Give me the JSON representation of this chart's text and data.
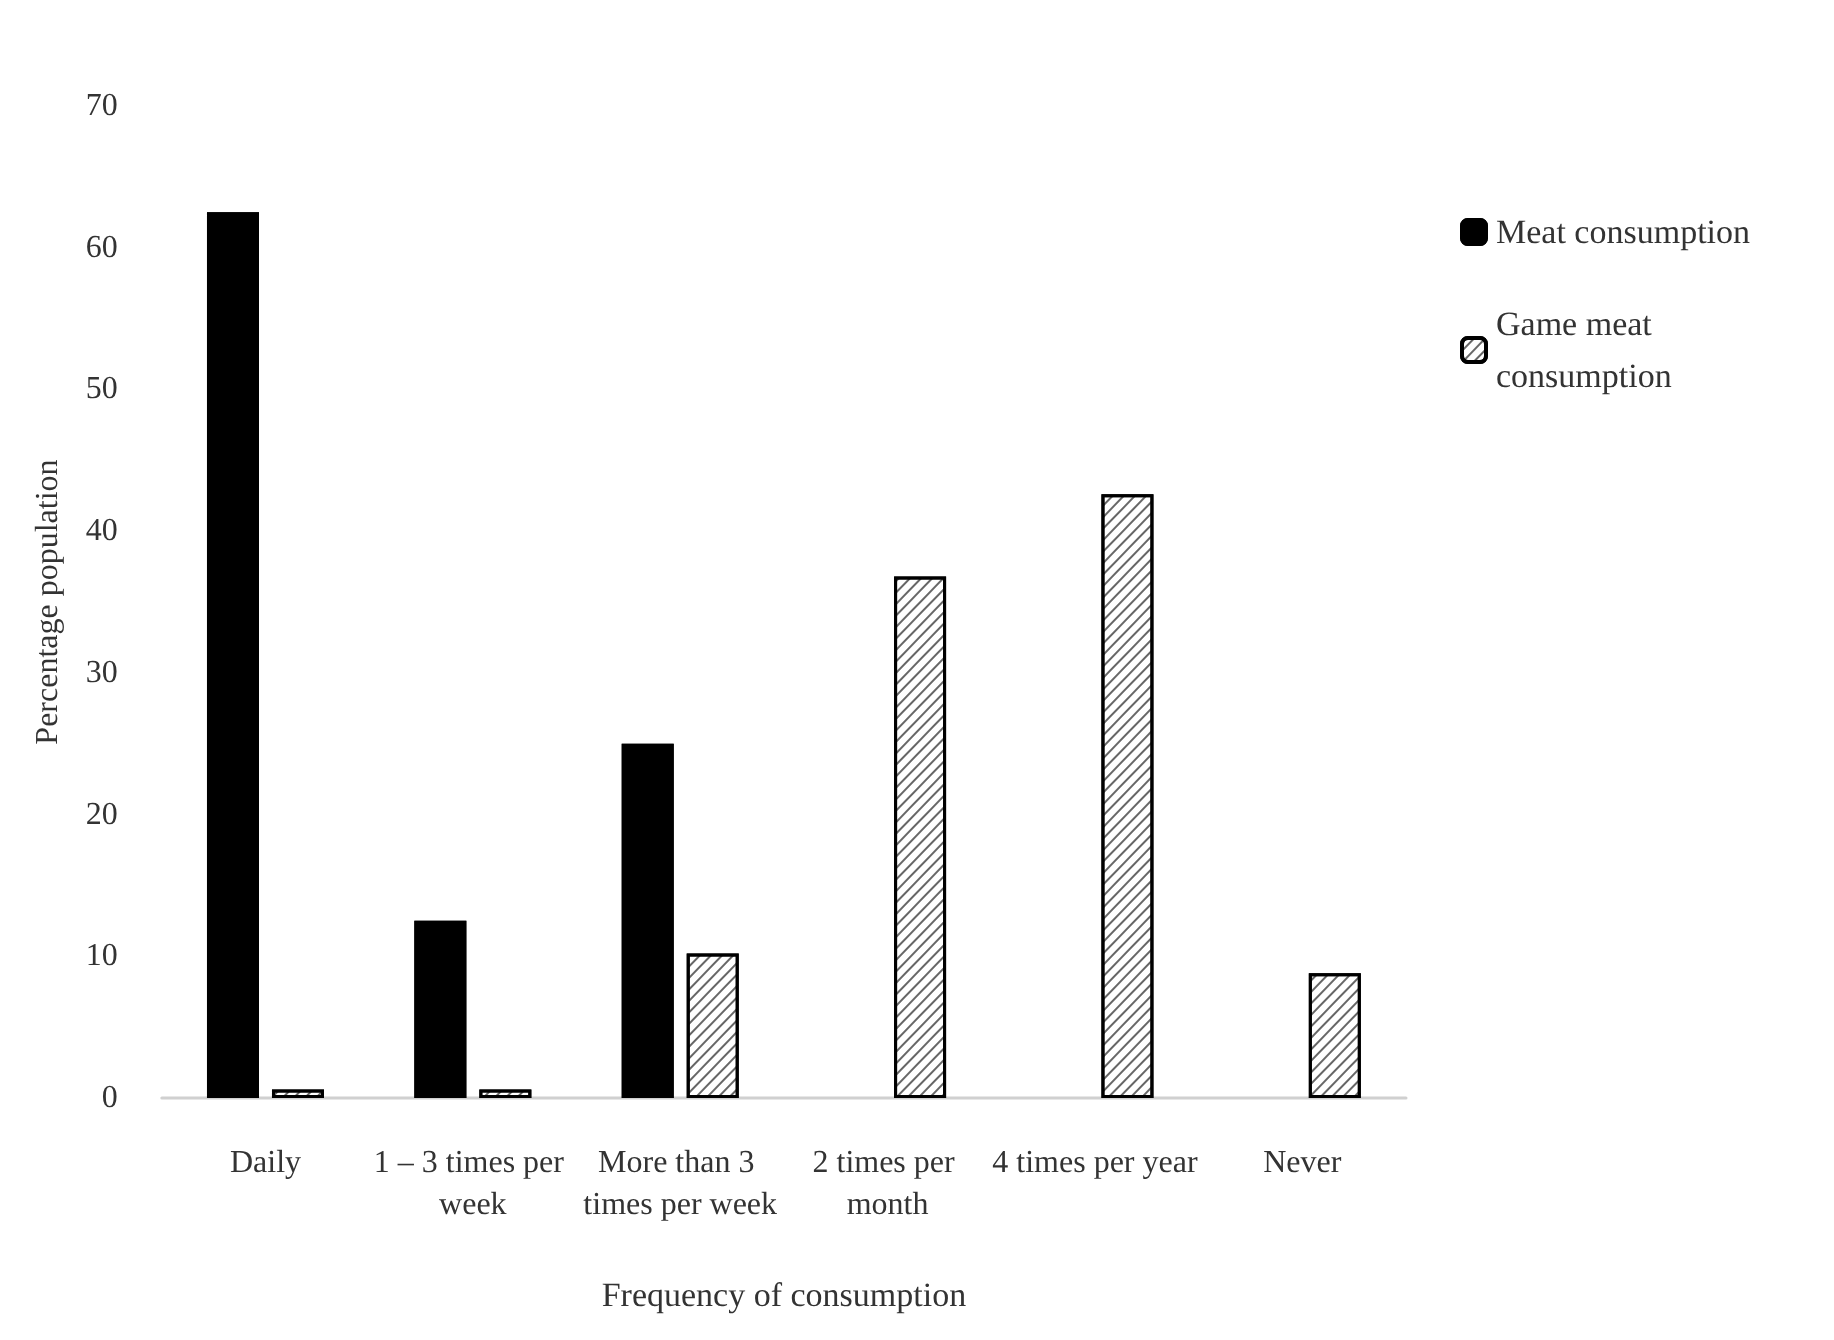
{
  "chart_data": {
    "type": "bar",
    "xlabel": "Frequency of consumption",
    "ylabel": "Percentage population",
    "categories": [
      "Daily",
      "1 – 3 times per week",
      "More than 3 times per week",
      "2 times per month",
      "4 times per year",
      "Never"
    ],
    "series": [
      {
        "name": "Meat consumption",
        "color": "#000000",
        "values": [
          62.5,
          12.5,
          25,
          null,
          null,
          null
        ]
      },
      {
        "name": "Game meat consumption",
        "color": "#ffffff",
        "values": [
          0.6,
          0.6,
          10.2,
          36.8,
          42.6,
          8.8
        ]
      }
    ],
    "ylim": [
      0,
      70
    ],
    "yticks": [
      0,
      10,
      20,
      30,
      40,
      50,
      60,
      70
    ],
    "grid": false,
    "legend": "right"
  }
}
